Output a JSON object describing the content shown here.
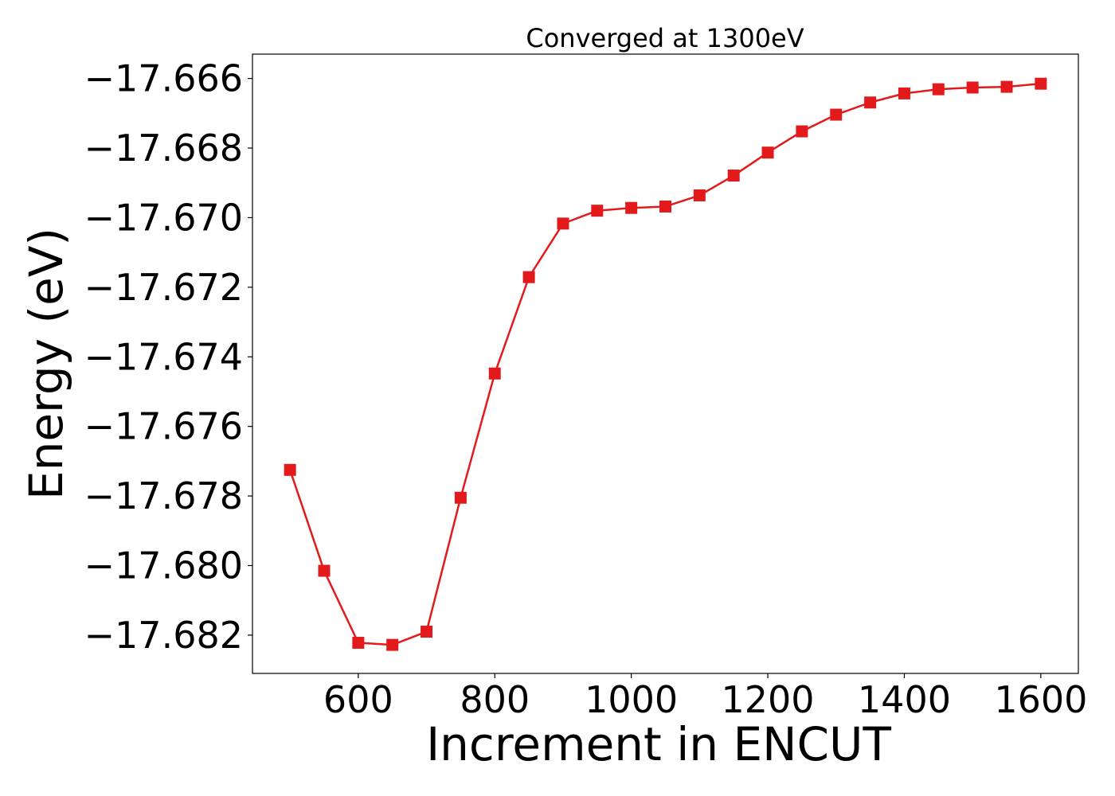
{
  "chart_data": {
    "type": "line",
    "title": "Converged at 1300eV",
    "xlabel": "Increment in ENCUT",
    "ylabel": "Energy (eV)",
    "x_ticks": [
      600,
      800,
      1000,
      1200,
      1400,
      1600
    ],
    "x_tick_labels": [
      "600",
      "800",
      "1000",
      "1200",
      "1400",
      "1600"
    ],
    "y_ticks": [
      -17.666,
      -17.668,
      -17.67,
      -17.672,
      -17.674,
      -17.676,
      -17.678,
      -17.68,
      -17.682
    ],
    "y_tick_labels": [
      "−17.666",
      "−17.668",
      "−17.670",
      "−17.672",
      "−17.674",
      "−17.676",
      "−17.678",
      "−17.680",
      "−17.682"
    ],
    "xlim": [
      445,
      1655
    ],
    "ylim": [
      -17.6831,
      -17.6653
    ],
    "grid": false,
    "series": [
      {
        "color": "#e31a1c",
        "marker": "square",
        "x": [
          500,
          550,
          600,
          650,
          700,
          750,
          800,
          850,
          900,
          950,
          1000,
          1050,
          1100,
          1150,
          1200,
          1250,
          1300,
          1350,
          1400,
          1450,
          1500,
          1550,
          1600
        ],
        "y": [
          -17.67725,
          -17.68015,
          -17.68222,
          -17.68228,
          -17.6819,
          -17.67805,
          -17.67448,
          -17.67171,
          -17.67017,
          -17.6698,
          -17.66972,
          -17.66968,
          -17.66936,
          -17.66879,
          -17.66813,
          -17.66752,
          -17.66704,
          -17.66669,
          -17.66643,
          -17.66631,
          -17.66626,
          -17.66624,
          -17.66615
        ]
      }
    ]
  }
}
